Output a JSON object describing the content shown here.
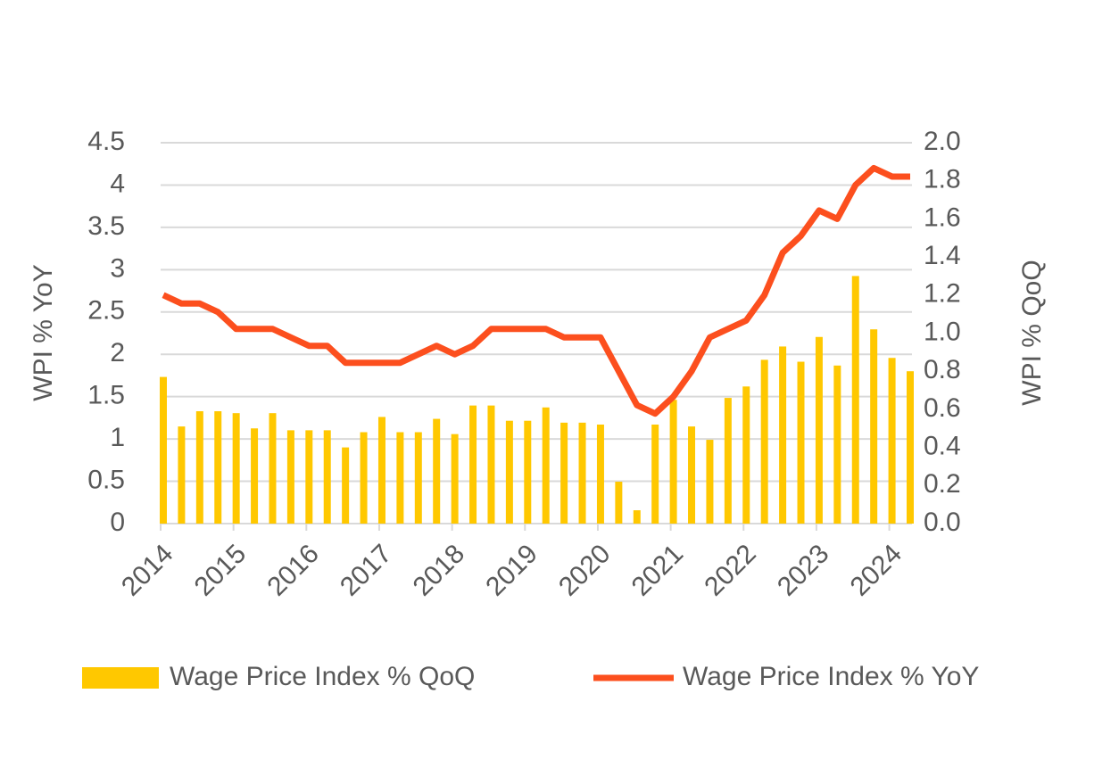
{
  "chart_data": {
    "type": "combo",
    "categories": [
      "2014",
      null,
      null,
      null,
      "2015",
      null,
      null,
      null,
      "2016",
      null,
      null,
      null,
      "2017",
      null,
      null,
      null,
      "2018",
      null,
      null,
      null,
      "2019",
      null,
      null,
      null,
      "2020",
      null,
      null,
      null,
      "2021",
      null,
      null,
      null,
      "2022",
      null,
      null,
      null,
      "2023",
      null,
      null,
      null,
      "2024",
      null
    ],
    "series": [
      {
        "name": "Wage Price Index % QoQ",
        "type": "bar",
        "axis": "y2",
        "color": "#ffc800",
        "values": [
          0.77,
          0.51,
          0.59,
          0.59,
          0.58,
          0.5,
          0.58,
          0.49,
          0.49,
          0.49,
          0.4,
          0.48,
          0.56,
          0.48,
          0.48,
          0.55,
          0.47,
          0.62,
          0.62,
          0.54,
          0.54,
          0.61,
          0.53,
          0.53,
          0.52,
          0.22,
          0.07,
          0.52,
          0.65,
          0.51,
          0.44,
          0.66,
          0.72,
          0.86,
          0.93,
          0.85,
          0.98,
          0.83,
          1.3,
          1.02,
          0.87,
          0.8
        ]
      },
      {
        "name": "Wage Price Index % YoY",
        "type": "line",
        "color": "#fc4f1e",
        "values": [
          2.7,
          2.6,
          2.6,
          2.5,
          2.3,
          2.3,
          2.3,
          2.2,
          2.1,
          2.1,
          1.9,
          1.9,
          1.9,
          1.9,
          2.0,
          2.1,
          2.0,
          2.1,
          2.3,
          2.3,
          2.3,
          2.3,
          2.2,
          2.2,
          2.2,
          1.8,
          1.4,
          1.3,
          1.5,
          1.8,
          2.2,
          2.3,
          2.4,
          2.7,
          3.2,
          3.4,
          3.7,
          3.6,
          4.0,
          4.2,
          4.1,
          4.1
        ]
      }
    ],
    "y_label": "WPI % YoY",
    "y2_label": "WPI % QoQ",
    "ylim": [
      0,
      4.5
    ],
    "yticks": [
      0,
      0.5,
      1,
      1.5,
      2,
      2.5,
      3,
      3.5,
      4,
      4.5
    ],
    "y2lim": [
      0,
      2
    ],
    "y2ticks": [
      {
        "value": 0,
        "label": "0.0"
      },
      0.2,
      0.4,
      0.6,
      0.8,
      {
        "value": 1,
        "label": "1.0"
      },
      1.2,
      1.4,
      1.6,
      1.8,
      {
        "value": 2,
        "label": "2.0"
      }
    ],
    "grid": true,
    "legend": "bottom"
  }
}
